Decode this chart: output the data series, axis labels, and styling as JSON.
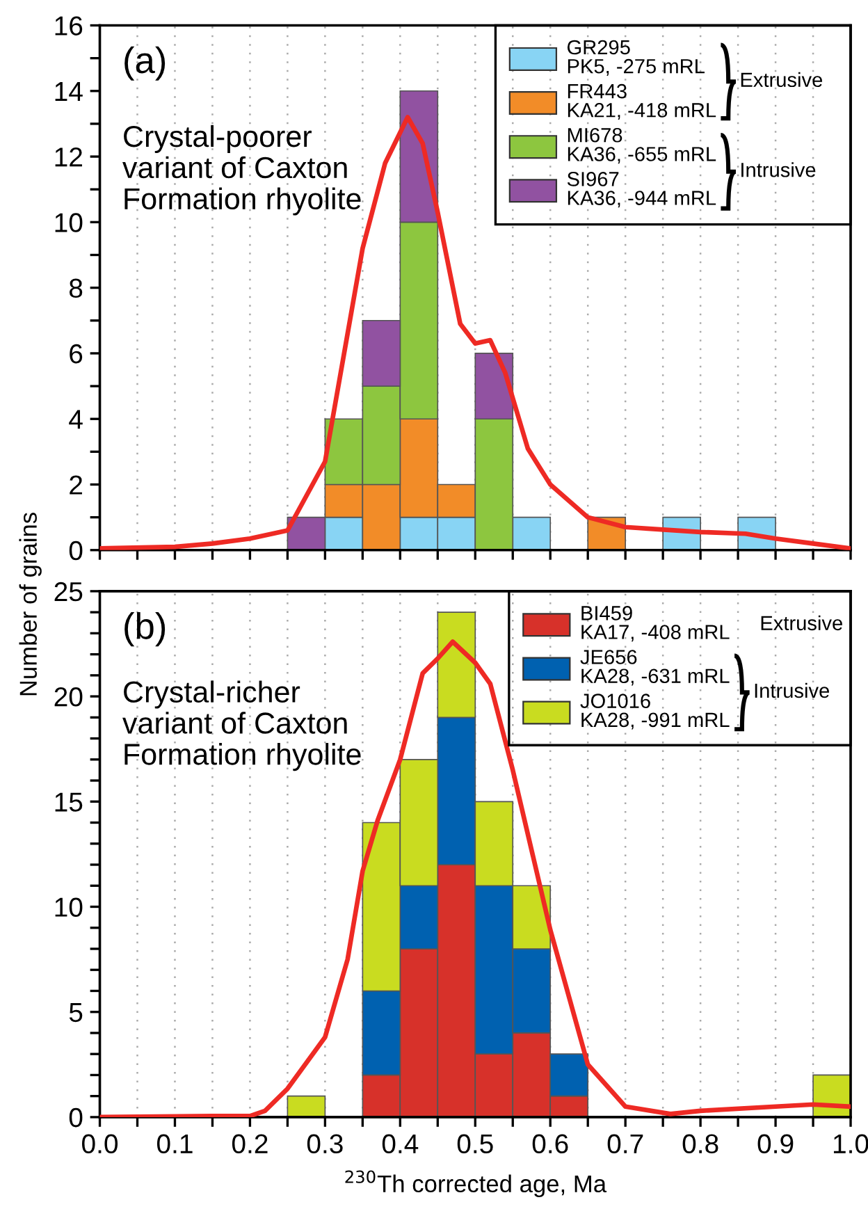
{
  "chart_data": [
    {
      "type": "bar",
      "stacked": true,
      "ylabel": "Number of grains",
      "tick_labels": "y",
      "grid": "x",
      "legend": "top right",
      "x": [
        0.025,
        0.075,
        0.125,
        0.175,
        0.225,
        0.275,
        0.325,
        0.375,
        0.425,
        0.475,
        0.525,
        0.575,
        0.625,
        0.675,
        0.725,
        0.775,
        0.825,
        0.875,
        0.925,
        0.975
      ],
      "xlim": [
        0,
        1.0
      ],
      "xticks": [
        0,
        0.1,
        0.2,
        0.3,
        0.4,
        0.5,
        0.6,
        0.7,
        0.8,
        0.9,
        1.0,
        {
          "value": 0.05,
          "label": null
        },
        {
          "value": 0.15,
          "label": null
        },
        {
          "value": 0.25,
          "label": null
        },
        {
          "value": 0.35,
          "label": null
        },
        {
          "value": 0.45,
          "label": null
        },
        {
          "value": 0.55,
          "label": null
        },
        {
          "value": 0.65,
          "label": null
        },
        {
          "value": 0.75,
          "label": null
        },
        {
          "value": 0.85,
          "label": null
        },
        {
          "value": 0.95,
          "label": null
        }
      ],
      "ylim": [
        0,
        16
      ],
      "yticks": [
        0,
        2,
        4,
        6,
        8,
        10,
        12,
        14,
        16,
        {
          "value": 1,
          "label": null
        },
        {
          "value": 3,
          "label": null
        },
        {
          "value": 5,
          "label": null
        },
        {
          "value": 7,
          "label": null
        },
        {
          "value": 9,
          "label": null
        },
        {
          "value": 11,
          "label": null
        },
        {
          "value": 13,
          "label": null
        },
        {
          "value": 15,
          "label": null
        }
      ],
      "annotations": [
        "(a)",
        "Crystal-poorer\nvariant of Caxton\nFormation rhyolite",
        "Extrusive",
        "Intrusive"
      ],
      "series": [
        {
          "name": "GR295\nPK5, -275 mRL",
          "color": "#88d4f4",
          "values": [
            0,
            0,
            0,
            0,
            0,
            0,
            1,
            0,
            1,
            1,
            0,
            1,
            0,
            0,
            0,
            1,
            0,
            1,
            0,
            0
          ]
        },
        {
          "name": "FR443\nKA21, -418 mRL",
          "color": "#f28c28",
          "values": [
            0,
            0,
            0,
            0,
            0,
            0,
            1,
            2,
            3,
            1,
            0,
            0,
            0,
            1,
            0,
            0,
            0,
            0,
            0,
            0
          ]
        },
        {
          "name": "MI678\nKA36, -655 mRL",
          "color": "#8dc63f",
          "values": [
            0,
            0,
            0,
            0,
            0,
            0,
            2,
            3,
            6,
            0,
            4,
            0,
            0,
            0,
            0,
            0,
            0,
            0,
            0,
            0
          ]
        },
        {
          "name": "SI967\nKA36, -944 mRL",
          "color": "#9152a1",
          "values": [
            0,
            0,
            0,
            0,
            0,
            1,
            0,
            2,
            4,
            0,
            2,
            0,
            0,
            0,
            0,
            0,
            0,
            0,
            0,
            0
          ]
        },
        {
          "type": "line",
          "color": "#ee2a24",
          "line_style": "solid",
          "marker": "none",
          "x": [
            0,
            0.1,
            0.15,
            0.2,
            0.25,
            0.3,
            0.35,
            0.38,
            0.41,
            0.43,
            0.45,
            0.48,
            0.5,
            0.52,
            0.54,
            0.57,
            0.6,
            0.65,
            0.7,
            0.8,
            0.86,
            0.9,
            0.95,
            1.0
          ],
          "values": [
            0.05,
            0.1,
            0.2,
            0.35,
            0.6,
            2.7,
            9.2,
            11.8,
            13.2,
            12.4,
            10.3,
            6.9,
            6.3,
            6.4,
            5.4,
            3.1,
            2.0,
            1.0,
            0.7,
            0.55,
            0.5,
            0.35,
            0.2,
            0.05
          ]
        }
      ]
    },
    {
      "type": "bar",
      "stacked": true,
      "xlabel": "$^{230}$Th corrected age, Ma",
      "grid": "x",
      "legend": "top right",
      "x": [
        0.025,
        0.075,
        0.125,
        0.175,
        0.225,
        0.275,
        0.325,
        0.375,
        0.425,
        0.475,
        0.525,
        0.575,
        0.625,
        0.675,
        0.725,
        0.775,
        0.825,
        0.875,
        0.925,
        0.975
      ],
      "xlim": [
        0,
        1.0
      ],
      "xticks": [
        {
          "value": 0,
          "label": "0.0"
        },
        0.1,
        0.2,
        0.3,
        0.4,
        0.5,
        0.6,
        0.7,
        0.8,
        0.9,
        {
          "value": 1,
          "label": "1.0"
        },
        {
          "value": 0.05,
          "label": null
        },
        {
          "value": 0.15,
          "label": null
        },
        {
          "value": 0.25,
          "label": null
        },
        {
          "value": 0.35,
          "label": null
        },
        {
          "value": 0.45,
          "label": null
        },
        {
          "value": 0.55,
          "label": null
        },
        {
          "value": 0.65,
          "label": null
        },
        {
          "value": 0.75,
          "label": null
        },
        {
          "value": 0.85,
          "label": null
        },
        {
          "value": 0.95,
          "label": null
        }
      ],
      "ylim": [
        0,
        25
      ],
      "yticks": [
        0,
        5,
        10,
        15,
        20,
        25,
        {
          "value": 1,
          "label": null
        },
        {
          "value": 2,
          "label": null
        },
        {
          "value": 3,
          "label": null
        },
        {
          "value": 4,
          "label": null
        },
        {
          "value": 6,
          "label": null
        },
        {
          "value": 7,
          "label": null
        },
        {
          "value": 8,
          "label": null
        },
        {
          "value": 9,
          "label": null
        },
        {
          "value": 11,
          "label": null
        },
        {
          "value": 12,
          "label": null
        },
        {
          "value": 13,
          "label": null
        },
        {
          "value": 14,
          "label": null
        },
        {
          "value": 16,
          "label": null
        },
        {
          "value": 17,
          "label": null
        },
        {
          "value": 18,
          "label": null
        },
        {
          "value": 19,
          "label": null
        },
        {
          "value": 21,
          "label": null
        },
        {
          "value": 22,
          "label": null
        },
        {
          "value": 23,
          "label": null
        },
        {
          "value": 24,
          "label": null
        }
      ],
      "annotations": [
        "(b)",
        "Crystal-richer\nvariant of Caxton\nFormation rhyolite",
        "Extrusive",
        "Intrusive"
      ],
      "series": [
        {
          "name": "BI459\nKA17, -408 mRL",
          "color": "#d7312a",
          "values": [
            0,
            0,
            0,
            0,
            0,
            0,
            0,
            2,
            8,
            12,
            3,
            4,
            1,
            0,
            0,
            0,
            0,
            0,
            0,
            0
          ]
        },
        {
          "name": "JE656\nKA28, -631 mRL",
          "color": "#0061b0",
          "values": [
            0,
            0,
            0,
            0,
            0,
            0,
            0,
            4,
            3,
            7,
            8,
            4,
            2,
            0,
            0,
            0,
            0,
            0,
            0,
            0
          ]
        },
        {
          "name": "JO1016\nKA28, -991 mRL",
          "color": "#c9dc20",
          "values": [
            0,
            0,
            0,
            0,
            0,
            1,
            0,
            8,
            6,
            5,
            4,
            3,
            0,
            0,
            0,
            0,
            0,
            0,
            0,
            2
          ]
        },
        {
          "type": "line",
          "color": "#ee2a24",
          "line_style": "solid",
          "marker": "none",
          "x": [
            0,
            0.15,
            0.2,
            0.22,
            0.25,
            0.3,
            0.33,
            0.35,
            0.37,
            0.4,
            0.43,
            0.45,
            0.47,
            0.5,
            0.52,
            0.55,
            0.6,
            0.65,
            0.7,
            0.76,
            0.8,
            0.9,
            0.95,
            1.0
          ],
          "values": [
            0,
            0.05,
            0.05,
            0.3,
            1.35,
            3.8,
            7.5,
            11.7,
            14.1,
            17,
            21.1,
            21.8,
            22.6,
            21.6,
            20.6,
            16.5,
            8.9,
            2.5,
            0.5,
            0.15,
            0.3,
            0.5,
            0.6,
            0.5
          ]
        }
      ]
    }
  ]
}
